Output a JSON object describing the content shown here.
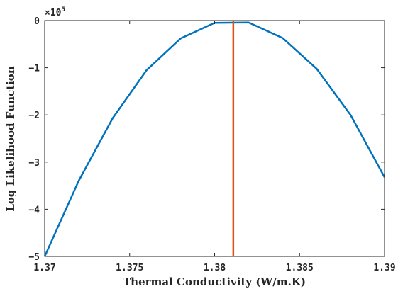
{
  "chart_data": {
    "type": "line",
    "xlabel": "Thermal Conductivity (W/m.K)",
    "ylabel": "Log Likelihood Function",
    "xlim": [
      1.37,
      1.39
    ],
    "ylim": [
      -5,
      0
    ],
    "y_multiplier": "×10",
    "y_multiplier_exponent": "5",
    "x_ticks": [
      1.37,
      1.375,
      1.38,
      1.385,
      1.39
    ],
    "x_tick_labels": [
      "1.37",
      "1.375",
      "1.38",
      "1.385",
      "1.39"
    ],
    "y_ticks": [
      -5,
      -4,
      -3,
      -2,
      -1,
      0
    ],
    "y_tick_labels": [
      "−5",
      "−4",
      "−3",
      "−2",
      "−1",
      "0"
    ],
    "grid": false,
    "series": [
      {
        "color": "#0072BD",
        "x": [
          1.37,
          1.372,
          1.374,
          1.376,
          1.378,
          1.38,
          1.382,
          1.384,
          1.386,
          1.388,
          1.39
        ],
        "y": [
          -5.0,
          -3.4,
          -2.07,
          -1.05,
          -0.38,
          -0.05,
          -0.04,
          -0.37,
          -1.02,
          -2.0,
          -3.32
        ]
      }
    ],
    "vline": {
      "x": 1.3811,
      "color": "#D95319"
    }
  }
}
